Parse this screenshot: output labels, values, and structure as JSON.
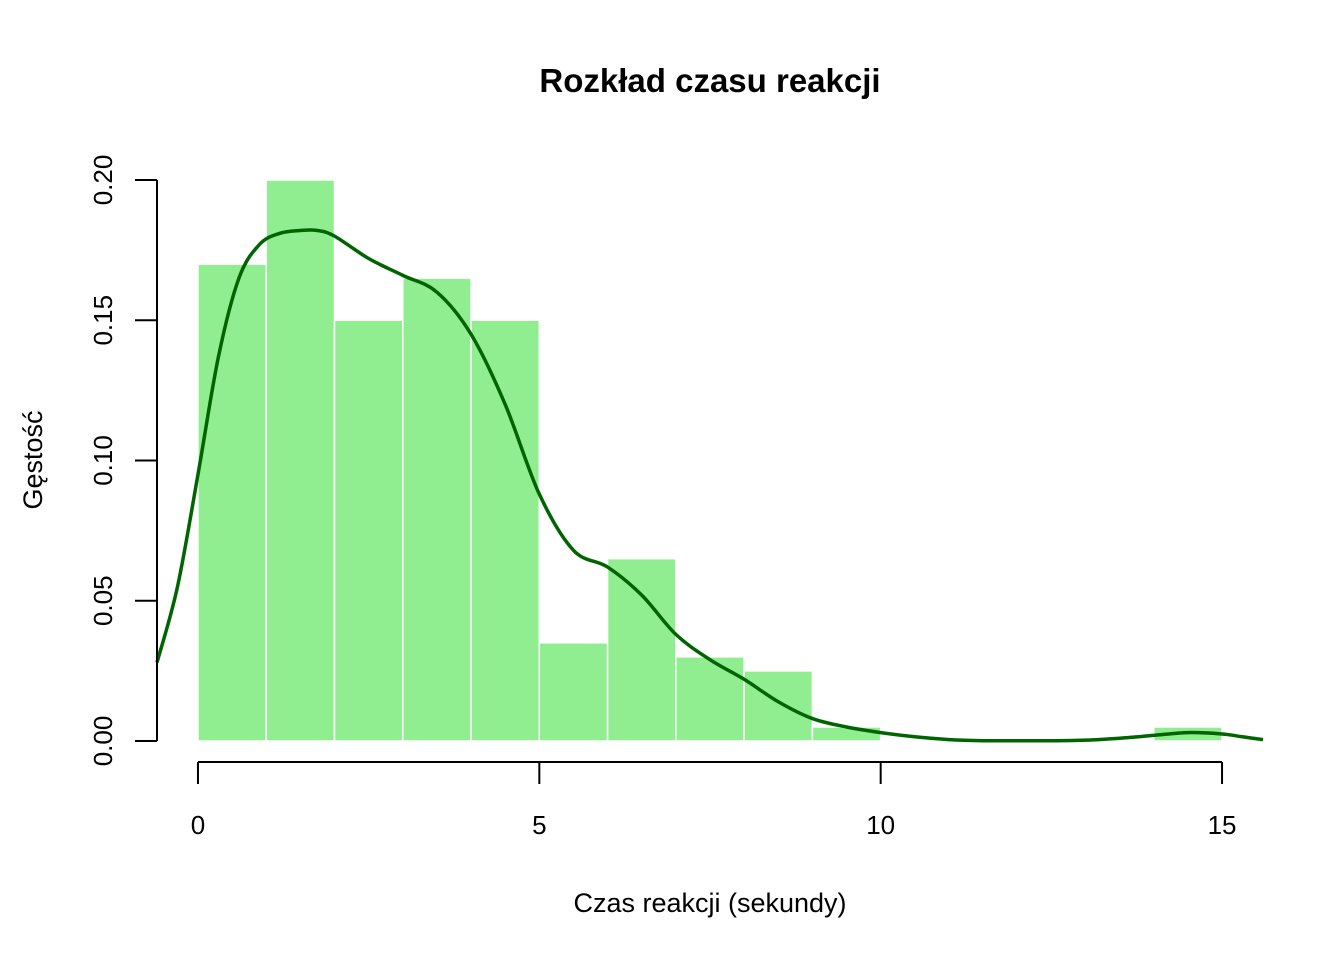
{
  "chart_data": {
    "type": "bar",
    "title": "Rozkład czasu reakcji",
    "xlabel": "Czas reakcji (sekundy)",
    "ylabel": "Gęstość",
    "xlim": [
      -0.6,
      15.6
    ],
    "ylim": [
      0,
      0.2
    ],
    "x_ticks": [
      "0",
      "5",
      "10",
      "15"
    ],
    "y_ticks": [
      "0.00",
      "0.05",
      "0.10",
      "0.15",
      "0.20"
    ],
    "bins": [
      {
        "x0": 0,
        "x1": 1,
        "density": 0.17
      },
      {
        "x0": 1,
        "x1": 2,
        "density": 0.2
      },
      {
        "x0": 2,
        "x1": 3,
        "density": 0.15
      },
      {
        "x0": 3,
        "x1": 4,
        "density": 0.165
      },
      {
        "x0": 4,
        "x1": 5,
        "density": 0.15
      },
      {
        "x0": 5,
        "x1": 6,
        "density": 0.035
      },
      {
        "x0": 6,
        "x1": 7,
        "density": 0.065
      },
      {
        "x0": 7,
        "x1": 8,
        "density": 0.03
      },
      {
        "x0": 8,
        "x1": 9,
        "density": 0.025
      },
      {
        "x0": 9,
        "x1": 10,
        "density": 0.005
      },
      {
        "x0": 10,
        "x1": 11,
        "density": 0
      },
      {
        "x0": 11,
        "x1": 12,
        "density": 0
      },
      {
        "x0": 12,
        "x1": 13,
        "density": 0
      },
      {
        "x0": 13,
        "x1": 14,
        "density": 0
      },
      {
        "x0": 14,
        "x1": 15,
        "density": 0.005
      }
    ],
    "density_curve": {
      "x": [
        -0.6,
        -0.3,
        0,
        0.3,
        0.6,
        0.9,
        1.2,
        1.5,
        1.75,
        2.0,
        2.5,
        3.0,
        3.5,
        4.0,
        4.5,
        5.0,
        5.5,
        6.0,
        6.5,
        7.0,
        7.5,
        8.0,
        8.5,
        9.0,
        9.5,
        10.0,
        10.5,
        11.0,
        11.5,
        12.0,
        12.5,
        13.0,
        13.5,
        14.0,
        14.5,
        15.0,
        15.3,
        15.6
      ],
      "y": [
        0.028,
        0.055,
        0.095,
        0.137,
        0.165,
        0.177,
        0.181,
        0.182,
        0.182,
        0.18,
        0.172,
        0.166,
        0.16,
        0.145,
        0.12,
        0.088,
        0.068,
        0.062,
        0.052,
        0.038,
        0.029,
        0.022,
        0.014,
        0.008,
        0.005,
        0.003,
        0.0015,
        0.0005,
        0.0001,
        0.0001,
        0.0001,
        0.0003,
        0.001,
        0.002,
        0.003,
        0.0025,
        0.0015,
        0.0005
      ]
    },
    "colors": {
      "bars": "#90ee90",
      "bar_border": "#ffffff",
      "curve": "#006400"
    },
    "grid": false,
    "legend": "none"
  }
}
